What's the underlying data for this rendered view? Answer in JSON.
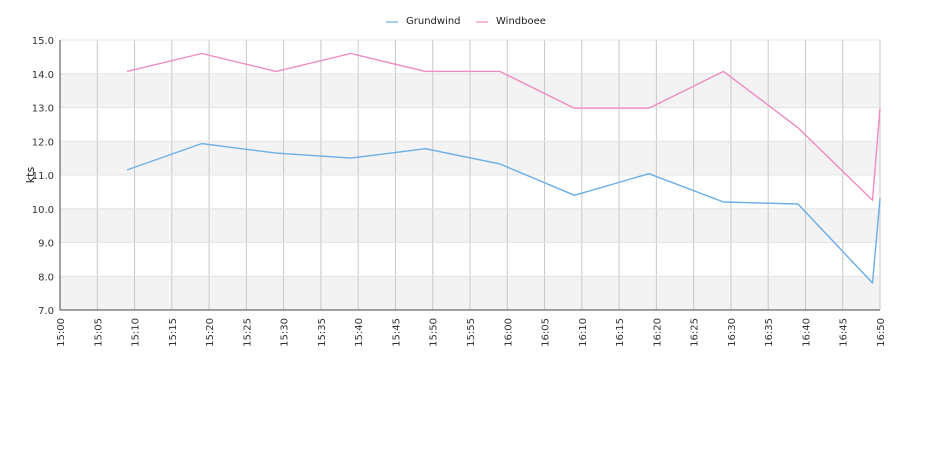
{
  "chart_data": {
    "type": "line",
    "title": "",
    "xlabel": "",
    "ylabel": "kts",
    "ylim": [
      7.0,
      15.0
    ],
    "xlim": [
      "15:00",
      "16:50"
    ],
    "y_ticks": [
      "7.0",
      "8.0",
      "9.0",
      "10.0",
      "11.0",
      "12.0",
      "13.0",
      "14.0",
      "15.0"
    ],
    "x_ticks": [
      "15:00",
      "15:05",
      "15:10",
      "15:15",
      "15:20",
      "15:25",
      "15:30",
      "15:35",
      "15:40",
      "15:45",
      "15:50",
      "15:55",
      "16:00",
      "16:05",
      "16:10",
      "16:15",
      "16:20",
      "16:25",
      "16:30",
      "16:35",
      "16:40",
      "16:45",
      "16:50"
    ],
    "grid": true,
    "horizontal_bands": true,
    "legend_position": "top-center",
    "series": [
      {
        "name": "Grundwind",
        "color": "#6aaee8",
        "points": [
          {
            "x": "15:09",
            "y": 11.15
          },
          {
            "x": "15:19",
            "y": 11.93
          },
          {
            "x": "15:29",
            "y": 11.65
          },
          {
            "x": "15:39",
            "y": 11.5
          },
          {
            "x": "15:49",
            "y": 11.78
          },
          {
            "x": "15:59",
            "y": 11.33
          },
          {
            "x": "16:09",
            "y": 10.4
          },
          {
            "x": "16:19",
            "y": 11.04
          },
          {
            "x": "16:29",
            "y": 10.2
          },
          {
            "x": "16:39",
            "y": 10.14
          },
          {
            "x": "16:49",
            "y": 7.8
          },
          {
            "x": "16:50",
            "y": 10.3
          }
        ]
      },
      {
        "name": "Windboee",
        "color": "#ef8bc1",
        "points": [
          {
            "x": "15:09",
            "y": 14.07
          },
          {
            "x": "15:19",
            "y": 14.6
          },
          {
            "x": "15:29",
            "y": 14.07
          },
          {
            "x": "15:39",
            "y": 14.6
          },
          {
            "x": "15:49",
            "y": 14.07
          },
          {
            "x": "15:59",
            "y": 14.07
          },
          {
            "x": "16:09",
            "y": 12.98
          },
          {
            "x": "16:19",
            "y": 12.98
          },
          {
            "x": "16:29",
            "y": 14.07
          },
          {
            "x": "16:39",
            "y": 12.4
          },
          {
            "x": "16:49",
            "y": 10.25
          },
          {
            "x": "16:50",
            "y": 12.98
          }
        ]
      }
    ]
  }
}
